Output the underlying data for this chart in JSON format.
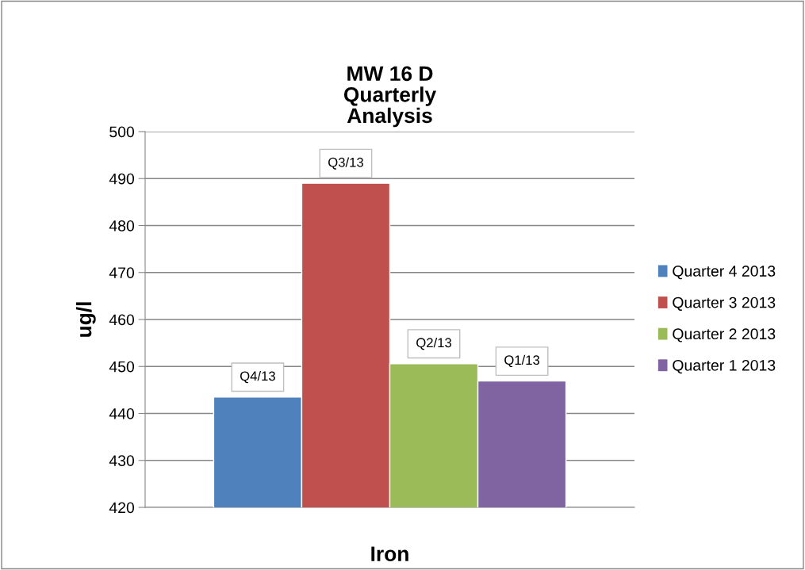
{
  "chart_data": {
    "type": "bar",
    "title": "MW 16 D\nQuarterly\nAnalysis",
    "ylabel": "ug/l",
    "categories": [
      "Iron"
    ],
    "series": [
      {
        "name": "Quarter 4 2013",
        "color": "#4f81bd",
        "values": [
          443.5
        ],
        "value_labels": [
          "Q4/13"
        ]
      },
      {
        "name": "Quarter 3 2013",
        "color": "#c0504d",
        "values": [
          489
        ],
        "value_labels": [
          "Q3/13"
        ]
      },
      {
        "name": "Quarter 2 2013",
        "color": "#9bbb59",
        "values": [
          450.6
        ],
        "value_labels": [
          "Q2/13"
        ]
      },
      {
        "name": "Quarter 1 2013",
        "color": "#8064a2",
        "values": [
          446.9
        ],
        "value_labels": [
          "Q1/13"
        ]
      }
    ],
    "ylim": [
      420,
      500
    ],
    "yticks": [
      420,
      430,
      440,
      450,
      460,
      470,
      480,
      490,
      500
    ],
    "grid": "y",
    "legend": "right"
  }
}
